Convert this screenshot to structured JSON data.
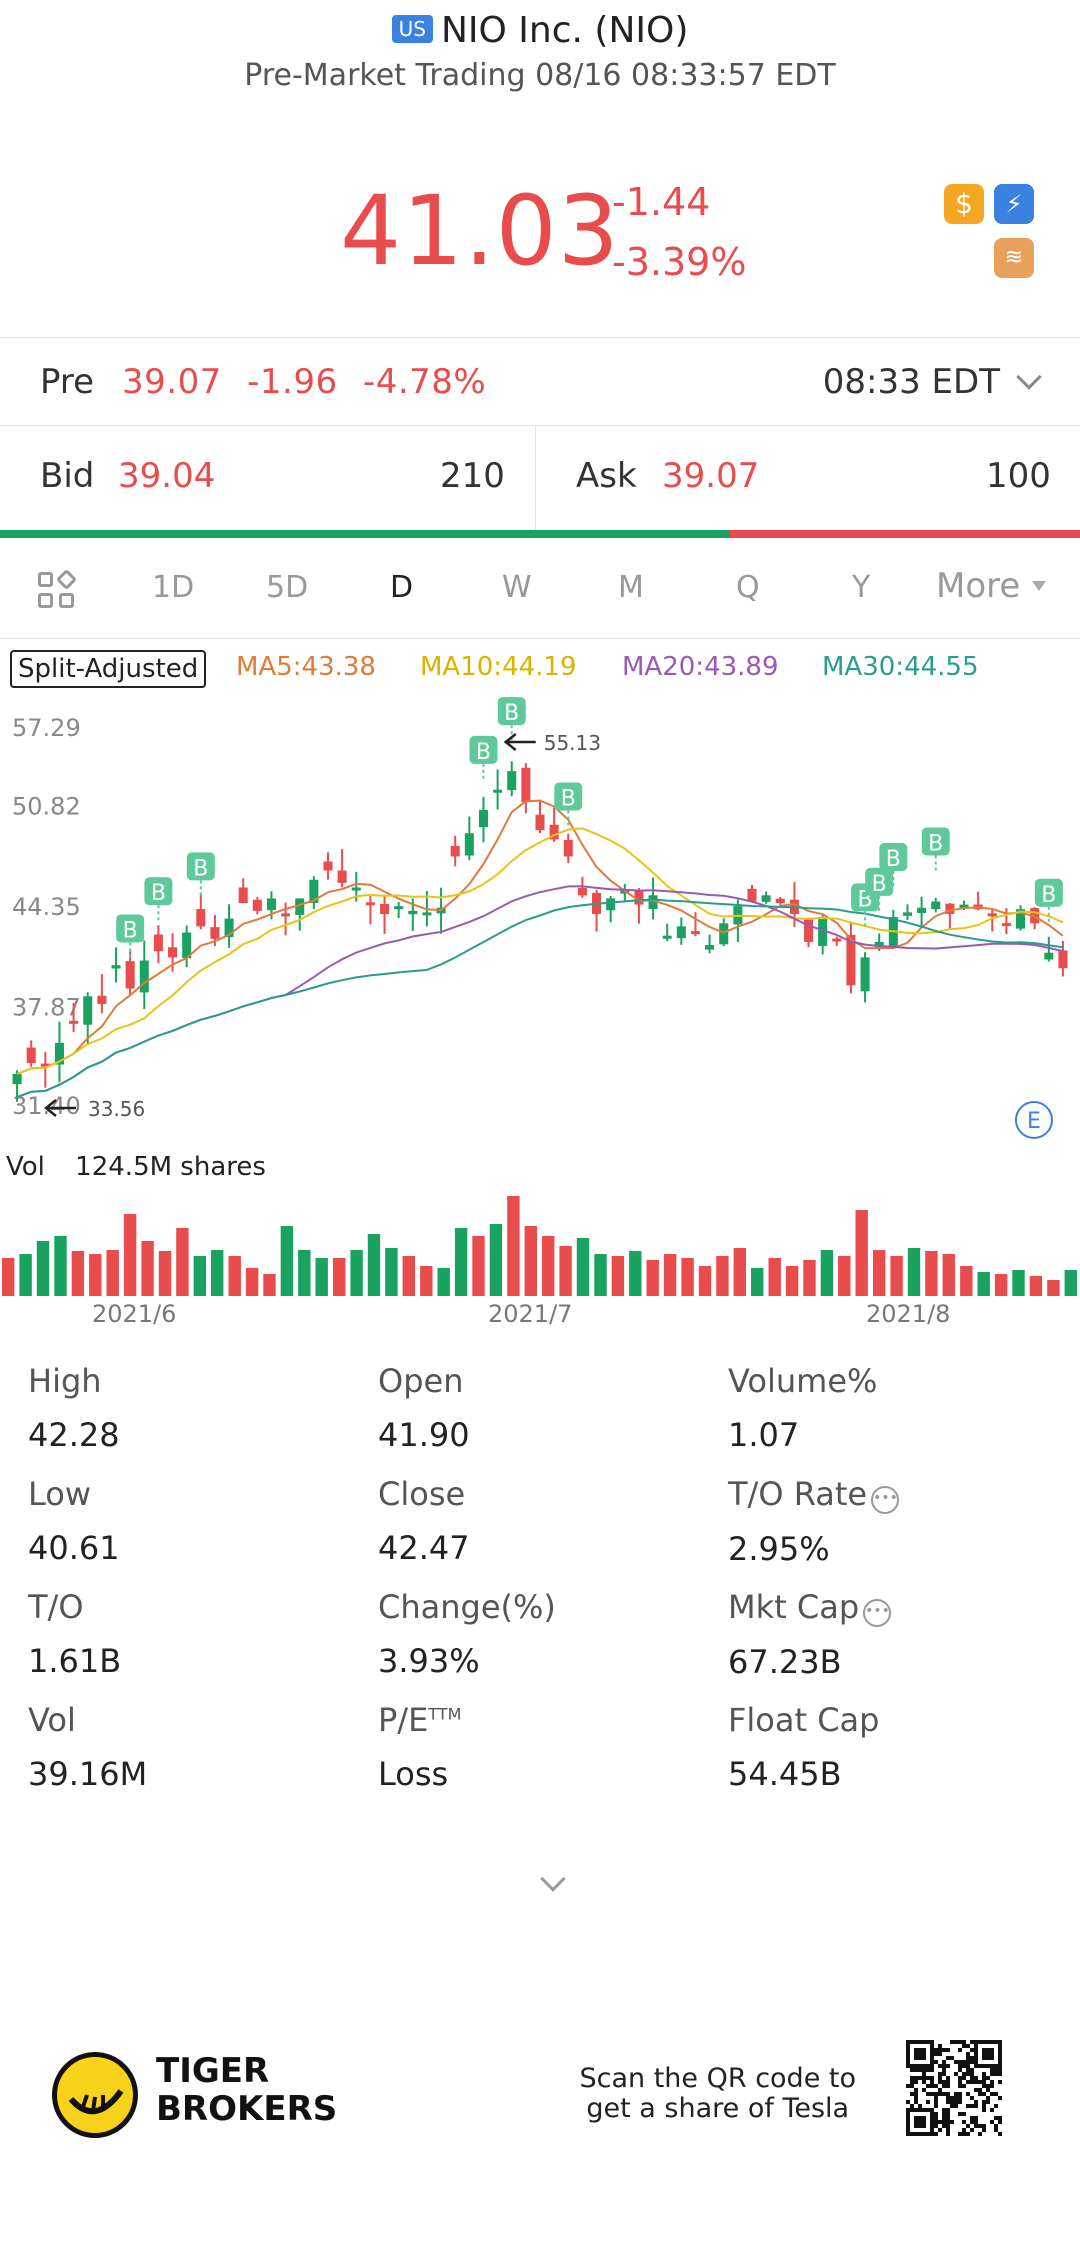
{
  "header": {
    "market_badge": "US",
    "title": "NIO Inc. (NIO)",
    "subtitle": "Pre-Market Trading 08/16 08:33:57 EDT",
    "price": "41.03",
    "change": "-1.44",
    "change_pct": "-3.39%",
    "accent_color": "#e94c4c"
  },
  "premarket": {
    "label": "Pre",
    "price": "39.07",
    "change": "-1.96",
    "change_pct": "-4.78%",
    "time": "08:33 EDT"
  },
  "bid": {
    "label": "Bid",
    "price": "39.04",
    "size": "210"
  },
  "ask": {
    "label": "Ask",
    "price": "39.07",
    "size": "100"
  },
  "tabs": [
    "1D",
    "5D",
    "D",
    "W",
    "M",
    "Q",
    "Y",
    "More"
  ],
  "active_tab": "D",
  "legend": {
    "split": "Split-Adjusted",
    "ma5": "MA5:43.38",
    "ma10": "MA10:44.19",
    "ma20": "MA20:43.89",
    "ma30": "MA30:44.55"
  },
  "chart_data": {
    "type": "candlestick",
    "y_ticks": [
      "57.29",
      "50.82",
      "44.35",
      "37.87",
      "31.40"
    ],
    "ylim": [
      31.4,
      57.29
    ],
    "high_annotation": "55.13",
    "low_annotation": "33.56",
    "buy_marker_label": "B",
    "earnings_marker_label": "E",
    "x_labels": [
      "2021/6",
      "2021/7",
      "2021/8"
    ],
    "colors": {
      "up": "#1aa260",
      "down": "#e94c4c",
      "ma5": "#e07b39",
      "ma10": "#e8c31a",
      "ma20": "#9b59b6",
      "ma30": "#2a9d8f"
    }
  },
  "volume": {
    "label": "Vol",
    "value": "124.5M shares"
  },
  "stats": [
    {
      "key": "High",
      "value": "42.28"
    },
    {
      "key": "Open",
      "value": "41.90"
    },
    {
      "key": "Volume%",
      "value": "1.07"
    },
    {
      "key": "Low",
      "value": "40.61"
    },
    {
      "key": "Close",
      "value": "42.47"
    },
    {
      "key": "T/O Rate",
      "value": "2.95%"
    },
    {
      "key": "T/O",
      "value": "1.61B"
    },
    {
      "key": "Change(%)",
      "value": "3.93%"
    },
    {
      "key": "Mkt Cap",
      "value": "67.23B"
    },
    {
      "key": "Vol",
      "value": "39.16M"
    },
    {
      "key": "P/E",
      "value": "Loss",
      "sup": "TTM"
    },
    {
      "key": "Float Cap",
      "value": "54.45B"
    }
  ],
  "footer": {
    "brand_line1": "TIGER",
    "brand_line2": "BROKERS",
    "scan_line1": "Scan the QR code to",
    "scan_line2": "get a share of Tesla"
  }
}
